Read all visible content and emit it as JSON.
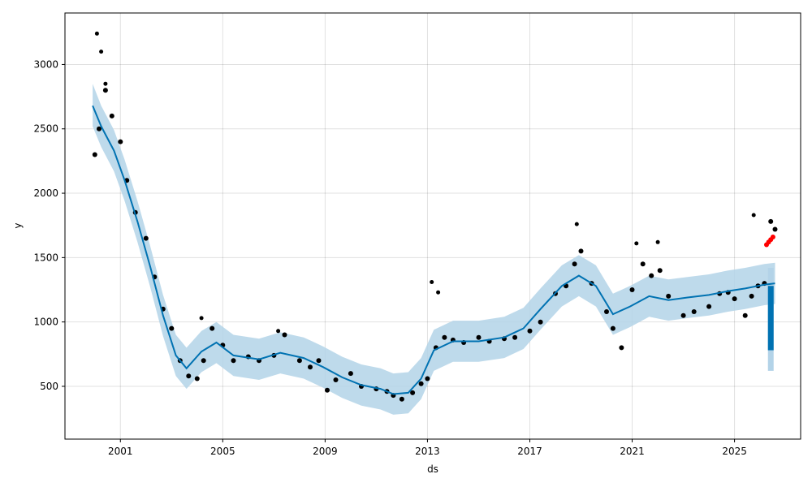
{
  "chart_data": {
    "type": "line",
    "title": "",
    "xlabel": "ds",
    "ylabel": "y",
    "xlim": [
      "1998-11-01",
      "2027-08-01"
    ],
    "ylim": [
      90,
      3400
    ],
    "x_ticks": [
      "2001",
      "2005",
      "2009",
      "2013",
      "2017",
      "2021",
      "2025"
    ],
    "y_ticks": [
      500,
      1000,
      1500,
      2000,
      2500,
      3000
    ],
    "grid": true,
    "legend": "none",
    "colors": {
      "observed": "#000000",
      "forecast": "#0072B2",
      "interval": "#B3D3E8",
      "recent_actual": "#FF0000"
    },
    "series": [
      {
        "kind": "observed-points",
        "x": [
          "2000-01",
          "2000-03",
          "2000-06",
          "2000-09",
          "2001-01",
          "2001-04",
          "2001-08",
          "2002-01",
          "2002-05",
          "2002-09",
          "2003-01",
          "2003-05",
          "2003-09",
          "2004-01",
          "2004-04",
          "2004-08",
          "2005-01",
          "2005-06",
          "2006-01",
          "2006-06",
          "2007-01",
          "2007-06",
          "2008-01",
          "2008-06",
          "2008-10",
          "2009-02",
          "2009-06",
          "2010-01",
          "2010-06",
          "2011-01",
          "2011-06",
          "2011-09",
          "2012-01",
          "2012-06",
          "2012-10",
          "2013-01",
          "2013-05",
          "2013-09",
          "2014-01",
          "2014-06",
          "2015-01",
          "2015-06",
          "2016-01",
          "2016-06",
          "2017-01",
          "2017-06",
          "2018-01",
          "2018-06",
          "2018-10",
          "2019-01",
          "2019-06",
          "2020-01",
          "2020-04",
          "2020-08",
          "2021-01",
          "2021-06",
          "2021-10",
          "2022-02",
          "2022-06",
          "2023-01",
          "2023-06",
          "2024-01",
          "2024-06",
          "2024-10",
          "2025-01",
          "2025-06",
          "2025-09",
          "2025-12",
          "2026-03",
          "2026-06",
          "2026-08"
        ],
        "y": [
          2300,
          2500,
          2800,
          2600,
          2400,
          2100,
          1850,
          1650,
          1350,
          1100,
          950,
          700,
          580,
          560,
          700,
          950,
          820,
          700,
          730,
          700,
          740,
          900,
          700,
          650,
          700,
          470,
          550,
          600,
          500,
          480,
          460,
          430,
          400,
          450,
          520,
          560,
          800,
          880,
          860,
          840,
          880,
          850,
          870,
          880,
          930,
          1000,
          1220,
          1280,
          1450,
          1550,
          1300,
          1080,
          950,
          800,
          1250,
          1450,
          1360,
          1400,
          1200,
          1050,
          1080,
          1120,
          1220,
          1230,
          1180,
          1050,
          1200,
          1280,
          1300,
          1780,
          1720
        ]
      },
      {
        "kind": "observed-spikes",
        "x": [
          "2000-02",
          "2000-04",
          "2000-06",
          "2004-03",
          "2007-03",
          "2013-03",
          "2013-06",
          "2018-11",
          "2021-03",
          "2022-01",
          "2025-10"
        ],
        "y": [
          3240,
          3100,
          2850,
          1030,
          930,
          1310,
          1230,
          1760,
          1610,
          1620,
          1830
        ]
      },
      {
        "kind": "recent-actual-points",
        "x": [
          "2026-04",
          "2026-05",
          "2026-06",
          "2026-07"
        ],
        "y": [
          1600,
          1620,
          1640,
          1660
        ]
      },
      {
        "kind": "forecast-line",
        "x": [
          "1999-12",
          "2000-04",
          "2000-10",
          "2001-03",
          "2001-09",
          "2002-03",
          "2002-09",
          "2003-03",
          "2003-08",
          "2004-03",
          "2004-10",
          "2005-06",
          "2006-06",
          "2007-04",
          "2008-03",
          "2008-12",
          "2009-09",
          "2010-06",
          "2011-03",
          "2011-09",
          "2012-04",
          "2012-10",
          "2013-04",
          "2014-01",
          "2015-01",
          "2016-01",
          "2016-10",
          "2017-06",
          "2018-04",
          "2018-12",
          "2019-08",
          "2020-04",
          "2020-12",
          "2021-09",
          "2022-06",
          "2023-03",
          "2024-01",
          "2024-10",
          "2025-06",
          "2026-03",
          "2026-08"
        ],
        "y": [
          2680,
          2520,
          2330,
          2100,
          1780,
          1430,
          1050,
          740,
          640,
          770,
          840,
          740,
          710,
          760,
          720,
          650,
          570,
          510,
          480,
          440,
          450,
          560,
          780,
          850,
          850,
          880,
          950,
          1100,
          1280,
          1360,
          1280,
          1060,
          1120,
          1200,
          1170,
          1190,
          1210,
          1240,
          1260,
          1290,
          1300
        ]
      },
      {
        "kind": "interval-upper",
        "x": [
          "1999-12",
          "2000-04",
          "2000-10",
          "2001-03",
          "2001-09",
          "2002-03",
          "2002-09",
          "2003-03",
          "2003-08",
          "2004-03",
          "2004-10",
          "2005-06",
          "2006-06",
          "2007-04",
          "2008-03",
          "2008-12",
          "2009-09",
          "2010-06",
          "2011-03",
          "2011-09",
          "2012-04",
          "2012-10",
          "2013-04",
          "2014-01",
          "2015-01",
          "2016-01",
          "2016-10",
          "2017-06",
          "2018-04",
          "2018-12",
          "2019-08",
          "2020-04",
          "2020-12",
          "2021-09",
          "2022-06",
          "2023-03",
          "2024-01",
          "2024-10",
          "2025-06",
          "2026-03",
          "2026-08"
        ],
        "y": [
          2850,
          2680,
          2490,
          2260,
          1940,
          1590,
          1210,
          900,
          800,
          930,
          1000,
          900,
          870,
          920,
          880,
          810,
          730,
          670,
          640,
          600,
          610,
          720,
          940,
          1010,
          1010,
          1040,
          1110,
          1260,
          1440,
          1520,
          1440,
          1220,
          1280,
          1360,
          1330,
          1350,
          1370,
          1400,
          1420,
          1450,
          1460
        ]
      },
      {
        "kind": "interval-lower",
        "x": [
          "1999-12",
          "2000-04",
          "2000-10",
          "2001-03",
          "2001-09",
          "2002-03",
          "2002-09",
          "2003-03",
          "2003-08",
          "2004-03",
          "2004-10",
          "2005-06",
          "2006-06",
          "2007-04",
          "2008-03",
          "2008-12",
          "2009-09",
          "2010-06",
          "2011-03",
          "2011-09",
          "2012-04",
          "2012-10",
          "2013-04",
          "2014-01",
          "2015-01",
          "2016-01",
          "2016-10",
          "2017-06",
          "2018-04",
          "2018-12",
          "2019-08",
          "2020-04",
          "2020-12",
          "2021-09",
          "2022-06",
          "2023-03",
          "2024-01",
          "2024-10",
          "2025-06",
          "2026-03",
          "2026-08"
        ],
        "y": [
          2520,
          2360,
          2170,
          1940,
          1620,
          1270,
          890,
          580,
          480,
          610,
          680,
          580,
          550,
          600,
          560,
          490,
          410,
          350,
          320,
          280,
          290,
          400,
          620,
          690,
          690,
          720,
          790,
          940,
          1120,
          1200,
          1120,
          900,
          960,
          1040,
          1010,
          1030,
          1050,
          1080,
          1100,
          1130,
          1140
        ]
      },
      {
        "kind": "forecast-range-bar",
        "x": [
          "2026-06",
          "2026-06"
        ],
        "y": [
          780,
          1280
        ]
      },
      {
        "kind": "forecast-range-interval",
        "x": [
          "2026-06",
          "2026-06"
        ],
        "y": [
          620,
          1420
        ]
      }
    ]
  }
}
